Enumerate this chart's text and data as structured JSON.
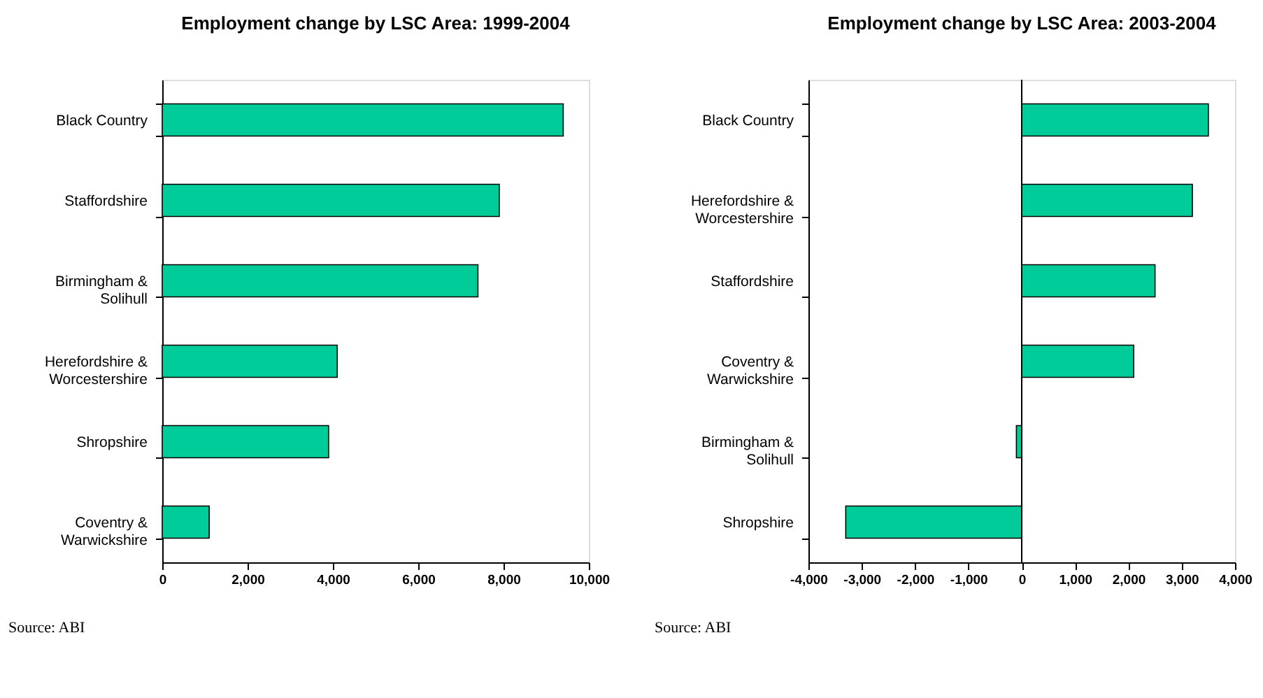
{
  "chart_data": [
    {
      "type": "bar",
      "orientation": "horizontal",
      "title": "Employment change by LSC Area: 1999-2004",
      "categories": [
        "Black Country",
        "Staffordshire",
        "Birmingham & Solihull",
        "Herefordshire & Worcestershire",
        "Shropshire",
        "Coventry & Warwickshire"
      ],
      "values": [
        9400,
        7900,
        7400,
        4100,
        3900,
        1100
      ],
      "color": "#00cc99",
      "xlim": [
        0,
        10000
      ],
      "xticks": [
        0,
        {
          "value": 2000,
          "label": "2,000"
        },
        {
          "value": 4000,
          "label": "4,000"
        },
        {
          "value": 6000,
          "label": "6,000"
        },
        {
          "value": 8000,
          "label": "8,000"
        },
        {
          "value": 10000,
          "label": "10,000"
        }
      ],
      "grid": false,
      "annotations": [
        "Source: ABI"
      ]
    },
    {
      "type": "bar",
      "orientation": "horizontal",
      "title": "Employment change by LSC Area: 2003-2004",
      "categories": [
        "Black Country",
        "Herefordshire & Worcestershire",
        "Staffordshire",
        "Coventry & Warwickshire",
        "Birmingham & Solihull",
        "Shropshire"
      ],
      "values": [
        3500,
        3200,
        2500,
        2100,
        -100,
        -3300
      ],
      "color": "#00cc99",
      "xlim": [
        -4000,
        4000
      ],
      "xticks": [
        {
          "value": -4000,
          "label": "-4,000"
        },
        {
          "value": -3000,
          "label": "-3,000"
        },
        {
          "value": -2000,
          "label": "-2,000"
        },
        {
          "value": -1000,
          "label": "-1,000"
        },
        0,
        {
          "value": 1000,
          "label": "1,000"
        },
        {
          "value": 2000,
          "label": "2,000"
        },
        {
          "value": 3000,
          "label": "3,000"
        },
        {
          "value": 4000,
          "label": "4,000"
        }
      ],
      "grid": false,
      "ref_lines": [
        {
          "axis": "x",
          "value": 0,
          "color": "#000000"
        }
      ],
      "annotations": [
        "Source: ABI"
      ]
    }
  ]
}
